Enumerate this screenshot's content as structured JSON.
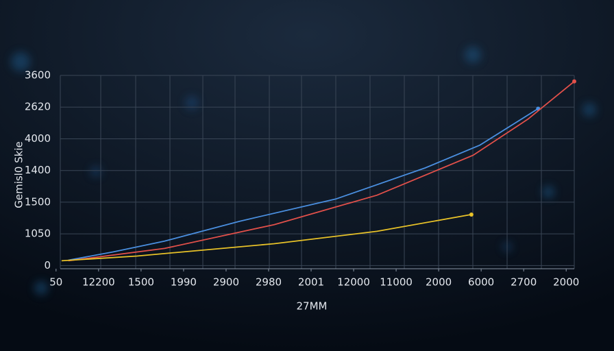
{
  "chart_data": {
    "type": "line",
    "ylabel": "Gemisl0 Skie",
    "xlabel": "27MM",
    "xlim": [
      0.1,
      12.19
    ],
    "ylim": [
      -0.1,
      6
    ],
    "xticks": [
      {
        "value": 0,
        "label": "50"
      },
      {
        "value": 1,
        "label": "12200"
      },
      {
        "value": 2,
        "label": "1500"
      },
      {
        "value": 3,
        "label": "1990"
      },
      {
        "value": 4,
        "label": "2900"
      },
      {
        "value": 5,
        "label": "2980"
      },
      {
        "value": 6,
        "label": "2001"
      },
      {
        "value": 7,
        "label": "12000"
      },
      {
        "value": 8,
        "label": "11000"
      },
      {
        "value": 9,
        "label": "2000"
      },
      {
        "value": 10,
        "label": "6000"
      },
      {
        "value": 11,
        "label": "2700"
      },
      {
        "value": 12,
        "label": "2000"
      }
    ],
    "yticks": [
      {
        "value": 0,
        "label": "0"
      },
      {
        "value": 1,
        "label": "1050"
      },
      {
        "value": 2,
        "label": "1500"
      },
      {
        "value": 3,
        "label": "1400"
      },
      {
        "value": 4,
        "label": "4000"
      },
      {
        "value": 5,
        "label": "2620"
      },
      {
        "value": 6,
        "label": "3600"
      }
    ],
    "series": [
      {
        "color": "#4a8fe0",
        "x": [
          0.29,
          1.34,
          2.55,
          4.32,
          6.58,
          8.68,
          9.97,
          11.34
        ],
        "values": [
          0.17,
          0.43,
          0.77,
          1.4,
          2.1,
          3.08,
          3.8,
          4.95
        ]
      },
      {
        "color": "#e2504a",
        "x": [
          0.29,
          2.55,
          5.13,
          7.55,
          9.81,
          11.1,
          12.19
        ],
        "values": [
          0.15,
          0.54,
          1.29,
          2.22,
          3.48,
          4.62,
          5.81
        ]
      },
      {
        "color": "#e8c228",
        "x": [
          0.13,
          1.9,
          5.13,
          7.55,
          9.77
        ],
        "values": [
          0.15,
          0.3,
          0.69,
          1.08,
          1.61
        ]
      }
    ]
  }
}
